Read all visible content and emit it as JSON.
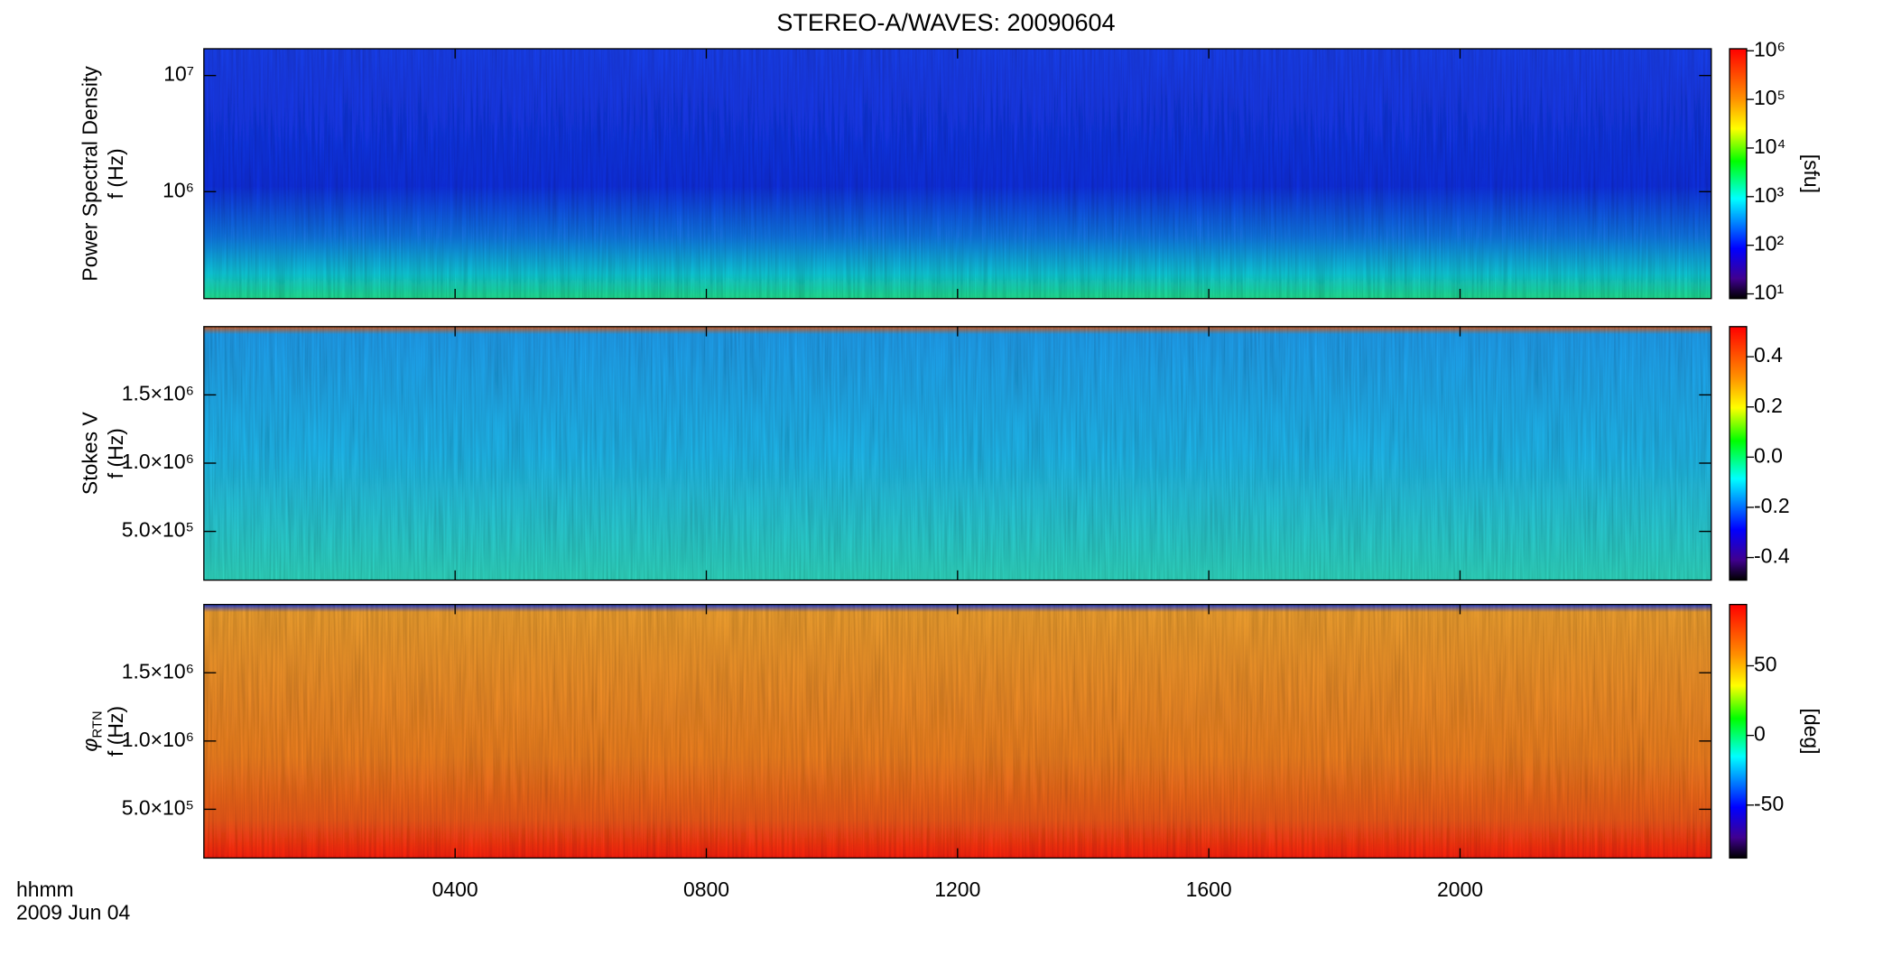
{
  "title": "STEREO-A/WAVES: 20090604",
  "x_axis": {
    "label": "hhmm",
    "date": "2009 Jun 04",
    "xlim": [
      0,
      24
    ],
    "xticks": [
      {
        "value": 4,
        "label": "0400"
      },
      {
        "value": 8,
        "label": "0800"
      },
      {
        "value": 12,
        "label": "1200"
      },
      {
        "value": 16,
        "label": "1600"
      },
      {
        "value": 20,
        "label": "2000"
      }
    ]
  },
  "chart_data": [
    {
      "type": "heatmap",
      "ylabel": "Power Spectral Density",
      "ylabel_unit": "f (Hz)",
      "yscale": "log",
      "ylim": [
        120000,
        17000000
      ],
      "yticks": [
        {
          "value": 1000000,
          "label": "10⁶"
        },
        {
          "value": 10000000,
          "label": "10⁷"
        }
      ],
      "colorbar": {
        "label": "[sfu]",
        "scale": "log",
        "lim": [
          8,
          1100000
        ],
        "ticks": [
          {
            "value": 10,
            "label": "10¹"
          },
          {
            "value": 100,
            "label": "10²"
          },
          {
            "value": 1000,
            "label": "10³"
          },
          {
            "value": 10000,
            "label": "10⁴"
          },
          {
            "value": 100000,
            "label": "10⁵"
          },
          {
            "value": 1000000,
            "label": "10⁶"
          }
        ]
      }
    },
    {
      "type": "heatmap",
      "ylabel": "Stokes V",
      "ylabel_unit": "f (Hz)",
      "yscale": "linear",
      "ylim": [
        143000,
        2000000
      ],
      "yticks": [
        {
          "value": 500000,
          "label": "5.0×10⁵"
        },
        {
          "value": 1000000,
          "label": "1.0×10⁶"
        },
        {
          "value": 1500000,
          "label": "1.5×10⁶"
        }
      ],
      "colorbar": {
        "scale": "linear",
        "lim": [
          -0.49,
          0.52
        ],
        "ticks": [
          -0.4,
          -0.2,
          {
            "value": 0,
            "label": "0.0"
          },
          0.2,
          0.4
        ]
      }
    },
    {
      "type": "heatmap",
      "ylabel_symbol": "φ",
      "ylabel_subscript": "RTN",
      "ylabel_unit": "f (Hz)",
      "yscale": "linear",
      "ylim": [
        143000,
        2000000
      ],
      "yticks": [
        {
          "value": 500000,
          "label": "5.0×10⁵"
        },
        {
          "value": 1000000,
          "label": "1.0×10⁶"
        },
        {
          "value": 1500000,
          "label": "1.5×10⁶"
        }
      ],
      "colorbar": {
        "label": "[deg]",
        "scale": "linear",
        "lim": [
          -88,
          94
        ],
        "ticks": [
          -50,
          0,
          50
        ]
      }
    }
  ]
}
